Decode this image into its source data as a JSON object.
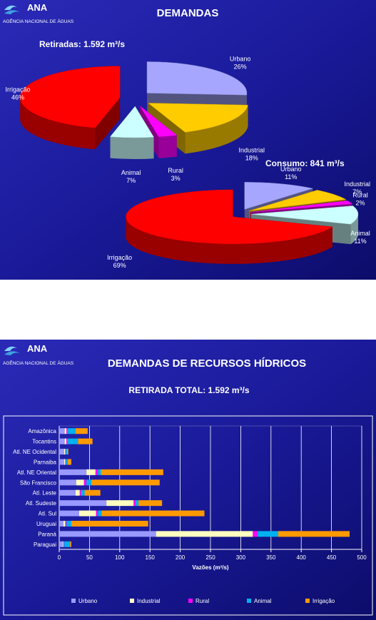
{
  "slides": [
    {
      "logo": "ANA",
      "agency": "AGÊNCIA NACIONAL DE ÁGUAS",
      "title": "DEMANDAS"
    },
    {
      "logo": "ANA",
      "agency": "AGÊNCIA NACIONAL DE ÁGUAS",
      "title": "DEMANDAS DE RECURSOS HÍDRICOS"
    }
  ],
  "chart_data": [
    {
      "type": "pie",
      "title": "Retiradas: 1.592 m³/s",
      "categories": [
        "Urbano",
        "Industrial",
        "Rural",
        "Animal",
        "Irrigação"
      ],
      "values": [
        26,
        18,
        3,
        7,
        46
      ],
      "value_labels": [
        "26%",
        "18%",
        "3%",
        "7%",
        "46%"
      ],
      "colors": [
        "#a6a6ff",
        "#ffcc00",
        "#ff00ff",
        "#ccffff",
        "#ff0000"
      ]
    },
    {
      "type": "pie",
      "title": "Consumo: 841 m³/s",
      "categories": [
        "Urbano",
        "Industrial",
        "Rural",
        "Animal",
        "Irrigação"
      ],
      "values": [
        11,
        7,
        2,
        11,
        69
      ],
      "value_labels": [
        "11%",
        "7%",
        "2%",
        "11%",
        "69%"
      ],
      "colors": [
        "#a6a6ff",
        "#ffcc00",
        "#ff00ff",
        "#ccffff",
        "#ff0000"
      ]
    },
    {
      "type": "hbar",
      "title": "RETIRADA TOTAL: 1.592 m³/s",
      "xlabel": "Vazões (m³/s)",
      "categories": [
        "Amazônica",
        "Tocantins",
        "Atl. NE Ocidental",
        "Parnaiba",
        "Atl. NE Oriental",
        "São Francisco",
        "Atl. Leste",
        "Atl. Sudeste",
        "Atl. Sul",
        "Uruguai",
        "Paraná",
        "Paraguai"
      ],
      "series": [
        {
          "name": "Urbano",
          "color": "#9999ff",
          "values": [
            9,
            9,
            8,
            8,
            45,
            28,
            27,
            78,
            33,
            7,
            160,
            6
          ]
        },
        {
          "name": "Industrial",
          "color": "#ffffc0",
          "values": [
            3,
            3,
            2,
            2,
            15,
            13,
            7,
            45,
            28,
            3,
            160,
            1
          ]
        },
        {
          "name": "Rural",
          "color": "#ff00ff",
          "values": [
            1,
            1,
            1,
            1,
            4,
            4,
            2,
            3,
            3,
            2,
            8,
            1
          ]
        },
        {
          "name": "Animal",
          "color": "#00b0f0",
          "values": [
            14,
            18,
            2,
            3,
            5,
            8,
            6,
            5,
            6,
            8,
            34,
            10
          ]
        },
        {
          "name": "Irrigação",
          "color": "#ff9900",
          "values": [
            20,
            24,
            2,
            6,
            103,
            113,
            26,
            39,
            170,
            127,
            118,
            2
          ]
        }
      ],
      "xlim": [
        0,
        500
      ],
      "xticks": [
        0,
        50,
        100,
        150,
        200,
        250,
        300,
        350,
        400,
        450,
        500
      ],
      "grid": true
    }
  ]
}
